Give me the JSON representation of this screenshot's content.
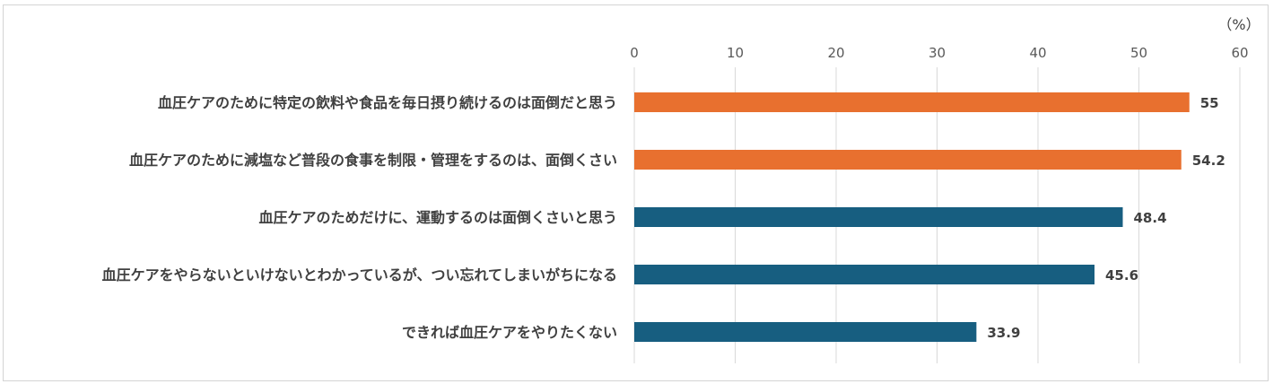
{
  "chart_data": {
    "type": "bar",
    "orientation": "horizontal",
    "unit_label": "（%）",
    "xlim": [
      0,
      60
    ],
    "x_ticks": [
      0,
      10,
      20,
      30,
      40,
      50,
      60
    ],
    "x_tick_labels": [
      "0",
      "10",
      "20",
      "30",
      "40",
      "50",
      "60"
    ],
    "grid": true,
    "categories": [
      "血圧ケアのために特定の飲料や食品を毎日摂り続けるのは面倒だと思う",
      "血圧ケアのために減塩など普段の食事を制限・管理をするのは、面倒くさい",
      "血圧ケアのためだけに、運動するのは面倒くさいと思う",
      "血圧ケアをやらないといけないとわかっているが、つい忘れてしまいがちになる",
      "できれば血圧ケアをやりたくない"
    ],
    "values": [
      55,
      54.2,
      48.4,
      45.6,
      33.9
    ],
    "data_labels": [
      "55",
      "54.2",
      "48.4",
      "45.6",
      "33.9"
    ],
    "bar_colors": [
      "#e8702f",
      "#e8702f",
      "#175e80",
      "#175e80",
      "#175e80"
    ],
    "gridline_color": "#d9d9d9"
  }
}
